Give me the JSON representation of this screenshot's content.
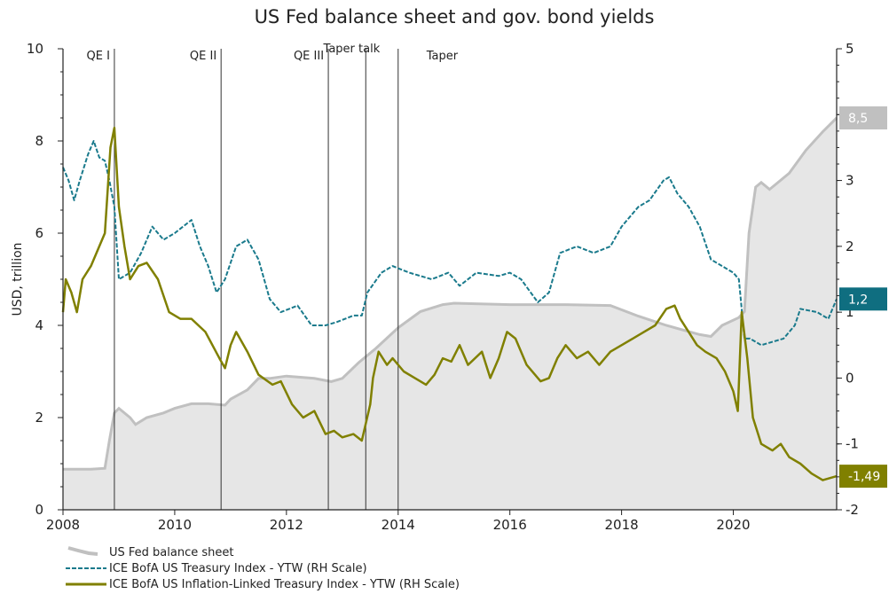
{
  "chart_data": {
    "type": "line",
    "title": "US Fed balance sheet and gov. bond yields",
    "ylabel": "USD, trillion",
    "ylim": [
      0,
      10
    ],
    "y2lim": [
      -2,
      5
    ],
    "xlim": [
      2008,
      2021.85
    ],
    "xticks": [
      "2008",
      "2010",
      "2012",
      "2014",
      "2016",
      "2018",
      "2020"
    ],
    "xtick_values": [
      2008,
      2010,
      2012,
      2014,
      2016,
      2018,
      2020
    ],
    "yticks": [
      "0",
      "2",
      "4",
      "6",
      "8",
      "10"
    ],
    "yticks_right": [
      "-2",
      "-1",
      "0",
      "1",
      "2",
      "3",
      "4",
      "5"
    ],
    "events": [
      {
        "label": "QE I",
        "x": 2008.92
      },
      {
        "label": "QE II",
        "x": 2010.83
      },
      {
        "label": "QE III",
        "x": 2012.75
      },
      {
        "label": "Taper talk",
        "x": 2013.42
      },
      {
        "label": "Taper",
        "x": 2014.0
      }
    ],
    "series": [
      {
        "name": "US Fed balance sheet",
        "axis": "left",
        "style": "area",
        "color": "#c0c0c0",
        "points": [
          [
            2008.0,
            0.88
          ],
          [
            2008.5,
            0.88
          ],
          [
            2008.75,
            0.9
          ],
          [
            2008.83,
            1.5
          ],
          [
            2008.92,
            2.1
          ],
          [
            2009.0,
            2.2
          ],
          [
            2009.2,
            2.0
          ],
          [
            2009.3,
            1.85
          ],
          [
            2009.5,
            2.0
          ],
          [
            2009.8,
            2.1
          ],
          [
            2010.0,
            2.2
          ],
          [
            2010.3,
            2.3
          ],
          [
            2010.6,
            2.3
          ],
          [
            2010.9,
            2.27
          ],
          [
            2011.0,
            2.4
          ],
          [
            2011.3,
            2.6
          ],
          [
            2011.5,
            2.85
          ],
          [
            2011.7,
            2.85
          ],
          [
            2012.0,
            2.9
          ],
          [
            2012.5,
            2.85
          ],
          [
            2012.8,
            2.78
          ],
          [
            2013.0,
            2.85
          ],
          [
            2013.3,
            3.2
          ],
          [
            2013.6,
            3.5
          ],
          [
            2014.0,
            3.95
          ],
          [
            2014.4,
            4.3
          ],
          [
            2014.8,
            4.45
          ],
          [
            2015.0,
            4.48
          ],
          [
            2016.0,
            4.45
          ],
          [
            2017.0,
            4.45
          ],
          [
            2017.8,
            4.43
          ],
          [
            2018.3,
            4.2
          ],
          [
            2018.8,
            4.0
          ],
          [
            2019.4,
            3.8
          ],
          [
            2019.6,
            3.76
          ],
          [
            2019.8,
            4.0
          ],
          [
            2020.1,
            4.17
          ],
          [
            2020.2,
            4.3
          ],
          [
            2020.28,
            6.0
          ],
          [
            2020.4,
            7.0
          ],
          [
            2020.5,
            7.1
          ],
          [
            2020.65,
            6.95
          ],
          [
            2021.0,
            7.3
          ],
          [
            2021.3,
            7.8
          ],
          [
            2021.6,
            8.2
          ],
          [
            2021.85,
            8.5
          ]
        ]
      },
      {
        "name": "ICE BofA US Treasury Index - YTW (RH Scale)",
        "axis": "right",
        "style": "dashed",
        "color": "#1a7a8c",
        "points": [
          [
            2008.0,
            3.2
          ],
          [
            2008.1,
            3.0
          ],
          [
            2008.2,
            2.7
          ],
          [
            2008.3,
            3.0
          ],
          [
            2008.45,
            3.4
          ],
          [
            2008.55,
            3.6
          ],
          [
            2008.65,
            3.35
          ],
          [
            2008.75,
            3.3
          ],
          [
            2008.83,
            3.0
          ],
          [
            2008.92,
            2.6
          ],
          [
            2009.0,
            1.5
          ],
          [
            2009.2,
            1.6
          ],
          [
            2009.4,
            1.9
          ],
          [
            2009.6,
            2.3
          ],
          [
            2009.8,
            2.1
          ],
          [
            2010.0,
            2.2
          ],
          [
            2010.3,
            2.4
          ],
          [
            2010.45,
            2.0
          ],
          [
            2010.6,
            1.7
          ],
          [
            2010.75,
            1.3
          ],
          [
            2010.9,
            1.5
          ],
          [
            2011.1,
            2.0
          ],
          [
            2011.3,
            2.1
          ],
          [
            2011.5,
            1.8
          ],
          [
            2011.7,
            1.2
          ],
          [
            2011.9,
            1.0
          ],
          [
            2012.2,
            1.1
          ],
          [
            2012.45,
            0.8
          ],
          [
            2012.7,
            0.8
          ],
          [
            2012.9,
            0.85
          ],
          [
            2013.2,
            0.95
          ],
          [
            2013.35,
            0.95
          ],
          [
            2013.45,
            1.3
          ],
          [
            2013.7,
            1.6
          ],
          [
            2013.9,
            1.7
          ],
          [
            2014.2,
            1.6
          ],
          [
            2014.6,
            1.5
          ],
          [
            2014.9,
            1.6
          ],
          [
            2015.1,
            1.4
          ],
          [
            2015.4,
            1.6
          ],
          [
            2015.8,
            1.55
          ],
          [
            2016.0,
            1.6
          ],
          [
            2016.2,
            1.5
          ],
          [
            2016.5,
            1.15
          ],
          [
            2016.7,
            1.3
          ],
          [
            2016.9,
            1.9
          ],
          [
            2017.2,
            2.0
          ],
          [
            2017.5,
            1.9
          ],
          [
            2017.8,
            2.0
          ],
          [
            2018.0,
            2.3
          ],
          [
            2018.3,
            2.6
          ],
          [
            2018.5,
            2.7
          ],
          [
            2018.75,
            3.0
          ],
          [
            2018.85,
            3.05
          ],
          [
            2019.0,
            2.8
          ],
          [
            2019.2,
            2.6
          ],
          [
            2019.4,
            2.3
          ],
          [
            2019.6,
            1.8
          ],
          [
            2019.8,
            1.7
          ],
          [
            2020.0,
            1.6
          ],
          [
            2020.1,
            1.5
          ],
          [
            2020.2,
            0.6
          ],
          [
            2020.3,
            0.6
          ],
          [
            2020.5,
            0.5
          ],
          [
            2020.7,
            0.55
          ],
          [
            2020.9,
            0.6
          ],
          [
            2021.1,
            0.8
          ],
          [
            2021.2,
            1.05
          ],
          [
            2021.5,
            1.0
          ],
          [
            2021.7,
            0.9
          ],
          [
            2021.85,
            1.2
          ]
        ]
      },
      {
        "name": "ICE BofA US Inflation-Linked Treasury Index - YTW (RH Scale)",
        "axis": "right",
        "style": "solid",
        "color": "#808000",
        "points": [
          [
            2008.0,
            1.0
          ],
          [
            2008.05,
            1.5
          ],
          [
            2008.15,
            1.3
          ],
          [
            2008.25,
            1.0
          ],
          [
            2008.35,
            1.5
          ],
          [
            2008.5,
            1.7
          ],
          [
            2008.65,
            2.0
          ],
          [
            2008.75,
            2.2
          ],
          [
            2008.85,
            3.5
          ],
          [
            2008.92,
            3.8
          ],
          [
            2009.0,
            2.6
          ],
          [
            2009.1,
            2.0
          ],
          [
            2009.2,
            1.5
          ],
          [
            2009.35,
            1.7
          ],
          [
            2009.5,
            1.75
          ],
          [
            2009.7,
            1.5
          ],
          [
            2009.9,
            1.0
          ],
          [
            2010.1,
            0.9
          ],
          [
            2010.3,
            0.9
          ],
          [
            2010.55,
            0.7
          ],
          [
            2010.8,
            0.3
          ],
          [
            2010.9,
            0.15
          ],
          [
            2011.0,
            0.5
          ],
          [
            2011.1,
            0.7
          ],
          [
            2011.3,
            0.4
          ],
          [
            2011.5,
            0.05
          ],
          [
            2011.75,
            -0.1
          ],
          [
            2011.9,
            -0.05
          ],
          [
            2012.1,
            -0.4
          ],
          [
            2012.3,
            -0.6
          ],
          [
            2012.5,
            -0.5
          ],
          [
            2012.7,
            -0.85
          ],
          [
            2012.85,
            -0.8
          ],
          [
            2013.0,
            -0.9
          ],
          [
            2013.2,
            -0.85
          ],
          [
            2013.35,
            -0.95
          ],
          [
            2013.5,
            -0.4
          ],
          [
            2013.55,
            0.0
          ],
          [
            2013.65,
            0.4
          ],
          [
            2013.8,
            0.2
          ],
          [
            2013.9,
            0.3
          ],
          [
            2014.1,
            0.1
          ],
          [
            2014.3,
            0.0
          ],
          [
            2014.5,
            -0.1
          ],
          [
            2014.65,
            0.05
          ],
          [
            2014.8,
            0.3
          ],
          [
            2014.95,
            0.25
          ],
          [
            2015.1,
            0.5
          ],
          [
            2015.25,
            0.2
          ],
          [
            2015.5,
            0.4
          ],
          [
            2015.65,
            0.0
          ],
          [
            2015.8,
            0.3
          ],
          [
            2015.95,
            0.7
          ],
          [
            2016.1,
            0.6
          ],
          [
            2016.3,
            0.2
          ],
          [
            2016.55,
            -0.05
          ],
          [
            2016.7,
            0.0
          ],
          [
            2016.85,
            0.3
          ],
          [
            2017.0,
            0.5
          ],
          [
            2017.2,
            0.3
          ],
          [
            2017.4,
            0.4
          ],
          [
            2017.6,
            0.2
          ],
          [
            2017.8,
            0.4
          ],
          [
            2018.0,
            0.5
          ],
          [
            2018.2,
            0.6
          ],
          [
            2018.4,
            0.7
          ],
          [
            2018.6,
            0.8
          ],
          [
            2018.8,
            1.05
          ],
          [
            2018.95,
            1.1
          ],
          [
            2019.05,
            0.9
          ],
          [
            2019.2,
            0.7
          ],
          [
            2019.35,
            0.5
          ],
          [
            2019.5,
            0.4
          ],
          [
            2019.7,
            0.3
          ],
          [
            2019.85,
            0.1
          ],
          [
            2020.0,
            -0.2
          ],
          [
            2020.08,
            -0.5
          ],
          [
            2020.15,
            1.0
          ],
          [
            2020.25,
            0.3
          ],
          [
            2020.35,
            -0.6
          ],
          [
            2020.5,
            -1.0
          ],
          [
            2020.7,
            -1.1
          ],
          [
            2020.85,
            -1.0
          ],
          [
            2021.0,
            -1.2
          ],
          [
            2021.2,
            -1.3
          ],
          [
            2021.4,
            -1.45
          ],
          [
            2021.6,
            -1.55
          ],
          [
            2021.85,
            -1.49
          ]
        ]
      }
    ],
    "end_labels": [
      {
        "text": "8,5",
        "axis": "left",
        "value": 8.5,
        "color": "#c0c0c0"
      },
      {
        "text": "1,2",
        "axis": "right",
        "value": 1.2,
        "color": "#0f6e80"
      },
      {
        "text": "-1,49",
        "axis": "right",
        "value": -1.49,
        "color": "#808000"
      }
    ],
    "legend": {
      "placement": "bottom-left",
      "items": [
        {
          "label": "US Fed balance sheet",
          "style": "area",
          "color": "#c0c0c0"
        },
        {
          "label": "ICE BofA US Treasury Index - YTW (RH Scale)",
          "style": "dashed",
          "color": "#1a7a8c"
        },
        {
          "label": "ICE BofA US Inflation-Linked Treasury Index - YTW (RH Scale)",
          "style": "solid",
          "color": "#808000"
        }
      ]
    },
    "grid": false
  }
}
